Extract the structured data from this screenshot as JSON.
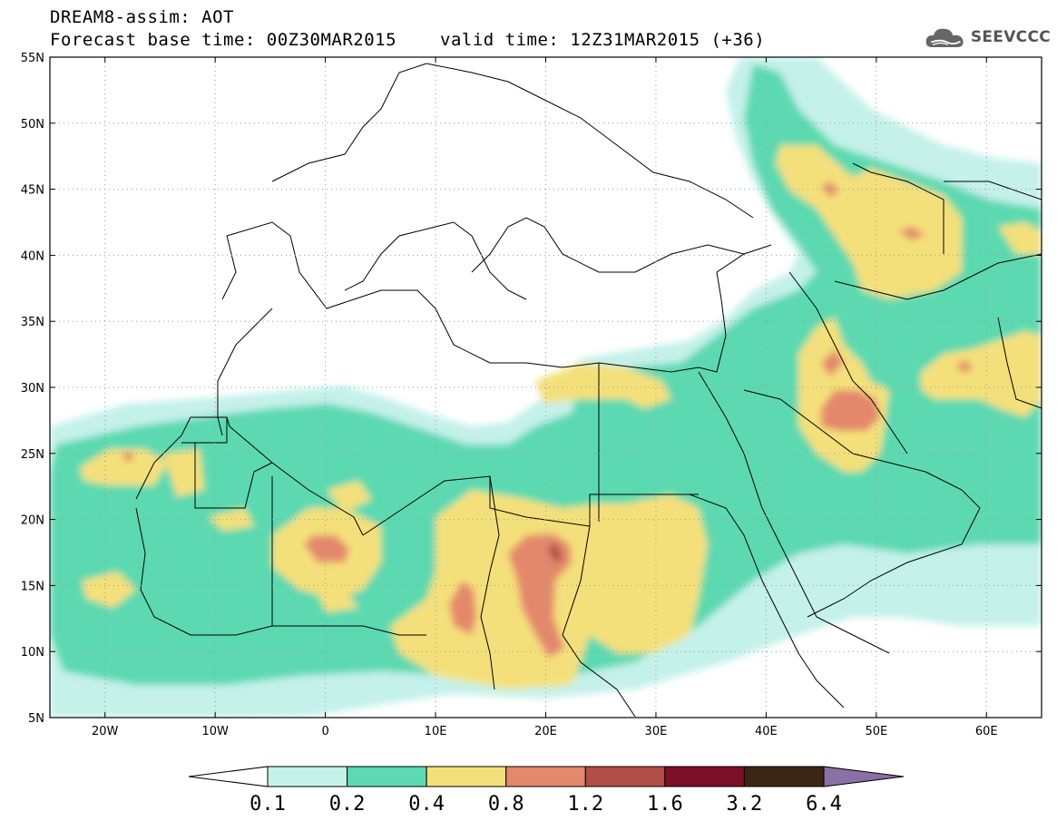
{
  "header": {
    "title_line1": "DREAM8-assim: AOT",
    "title_line2": "Forecast base time: 00Z30MAR2015",
    "valid_time": "valid time: 12Z31MAR2015 (+36)",
    "logo_text": "SEEVCCC"
  },
  "map": {
    "lon_range": [
      -25,
      65
    ],
    "lat_range": [
      5,
      55
    ],
    "x_ticks": [
      "20W",
      "10W",
      "0",
      "10E",
      "20E",
      "30E",
      "40E",
      "50E",
      "60E"
    ],
    "y_ticks": [
      "55N",
      "50N",
      "45N",
      "40N",
      "35N",
      "30N",
      "25N",
      "20N",
      "15N",
      "10N",
      "5N"
    ],
    "grid": "dotted"
  },
  "colorbar": {
    "labels": [
      "0.1",
      "0.2",
      "0.4",
      "0.8",
      "1.2",
      "1.6",
      "3.2",
      "6.4"
    ],
    "colors": [
      "#c4f1ea",
      "#5cd9b0",
      "#f4e07a",
      "#e4886c",
      "#b24e45",
      "#7d0f26",
      "#3d2513",
      "#8b6fa7"
    ],
    "below_color": "#ffffff"
  }
}
